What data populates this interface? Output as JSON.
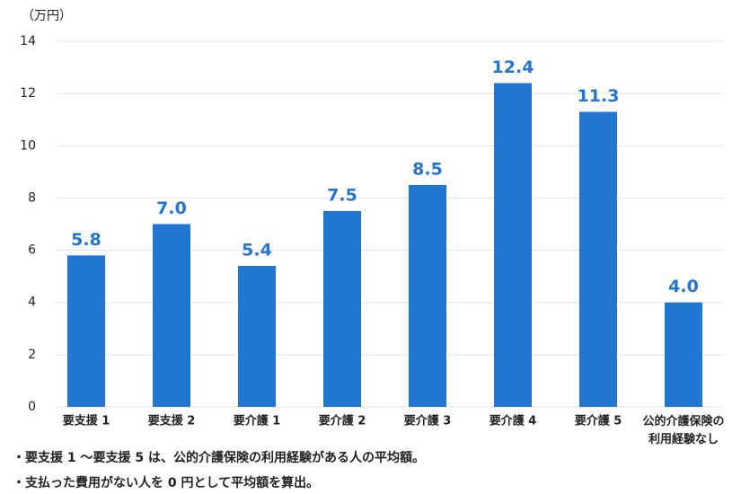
{
  "chart_data": {
    "type": "bar",
    "y_label": "（万円）",
    "categories": [
      "要支援 1",
      "要支援 2",
      "要介護 1",
      "要介護 2",
      "要介護 3",
      "要介護 4",
      "要介護 5",
      "公的介護保険の\n利用経験なし"
    ],
    "values": [
      5.8,
      7.0,
      5.4,
      7.5,
      8.5,
      12.4,
      11.3,
      4.0
    ],
    "value_labels": [
      "5.8",
      "7.0",
      "5.4",
      "7.5",
      "8.5",
      "12.4",
      "11.3",
      "4.0"
    ],
    "color": "#2176d2",
    "ylim": [
      0,
      14
    ],
    "yticks": [
      0,
      2,
      4,
      6,
      8,
      10,
      12,
      14
    ],
    "grid": true,
    "notes": [
      "・要支援 1 ～要支援 5 は、公的介護保険の利用経験がある人の平均額。",
      "・支払った費用がない人を 0 円として平均額を算出。"
    ]
  }
}
